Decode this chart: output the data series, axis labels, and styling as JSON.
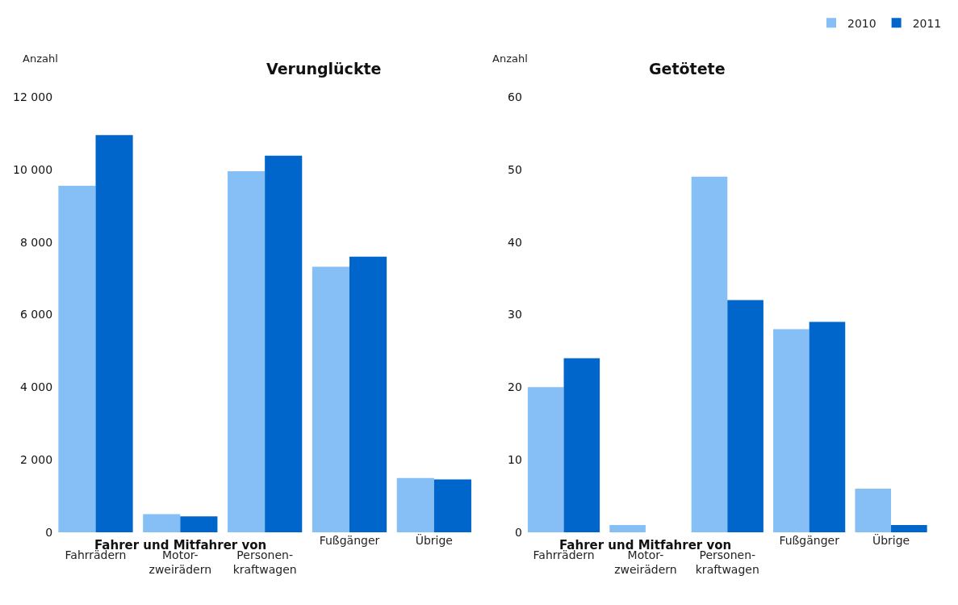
{
  "chart_data": [
    {
      "type": "bar",
      "title": "Verunglückte",
      "ylabel": "Anzahl",
      "categories": [
        "Fahrrädern",
        "Motor-\nzweirädern",
        "Personen-\nkraftwagen",
        "Fußgänger",
        "Übrige"
      ],
      "series": [
        {
          "name": "2010",
          "color": "#85bff5",
          "values": [
            9550,
            500,
            9950,
            7320,
            1500
          ]
        },
        {
          "name": "2011",
          "color": "#0066cc",
          "values": [
            10950,
            440,
            10380,
            7600,
            1460
          ]
        }
      ],
      "ylim": [
        0,
        12000
      ],
      "yticks": [
        0,
        {
          "value": 2000,
          "label": "2 000"
        },
        {
          "value": 4000,
          "label": "4 000"
        },
        {
          "value": 6000,
          "label": "6 000"
        },
        {
          "value": 8000,
          "label": "8 000"
        },
        {
          "value": 10000,
          "label": "10 000"
        },
        {
          "value": 12000,
          "label": "12 000"
        }
      ],
      "annotations": [
        "Fahrer und Mitfahrer von"
      ],
      "legend": "top right"
    },
    {
      "type": "bar",
      "title": "Getötete",
      "ylabel": "Anzahl",
      "categories": [
        "Fahrrädern",
        "Motor-\nzweirädern",
        "Personen-\nkraftwagen",
        "Fußgänger",
        "Übrige"
      ],
      "series": [
        {
          "name": "2010",
          "color": "#85bff5",
          "values": [
            20,
            1,
            49,
            28,
            6
          ]
        },
        {
          "name": "2011",
          "color": "#0066cc",
          "values": [
            24,
            0,
            32,
            29,
            1
          ]
        }
      ],
      "ylim": [
        0,
        60
      ],
      "yticks": [
        0,
        10,
        20,
        30,
        40,
        50,
        60
      ],
      "annotations": [
        "Fahrer und Mitfahrer von"
      ],
      "legend": "top right"
    }
  ]
}
